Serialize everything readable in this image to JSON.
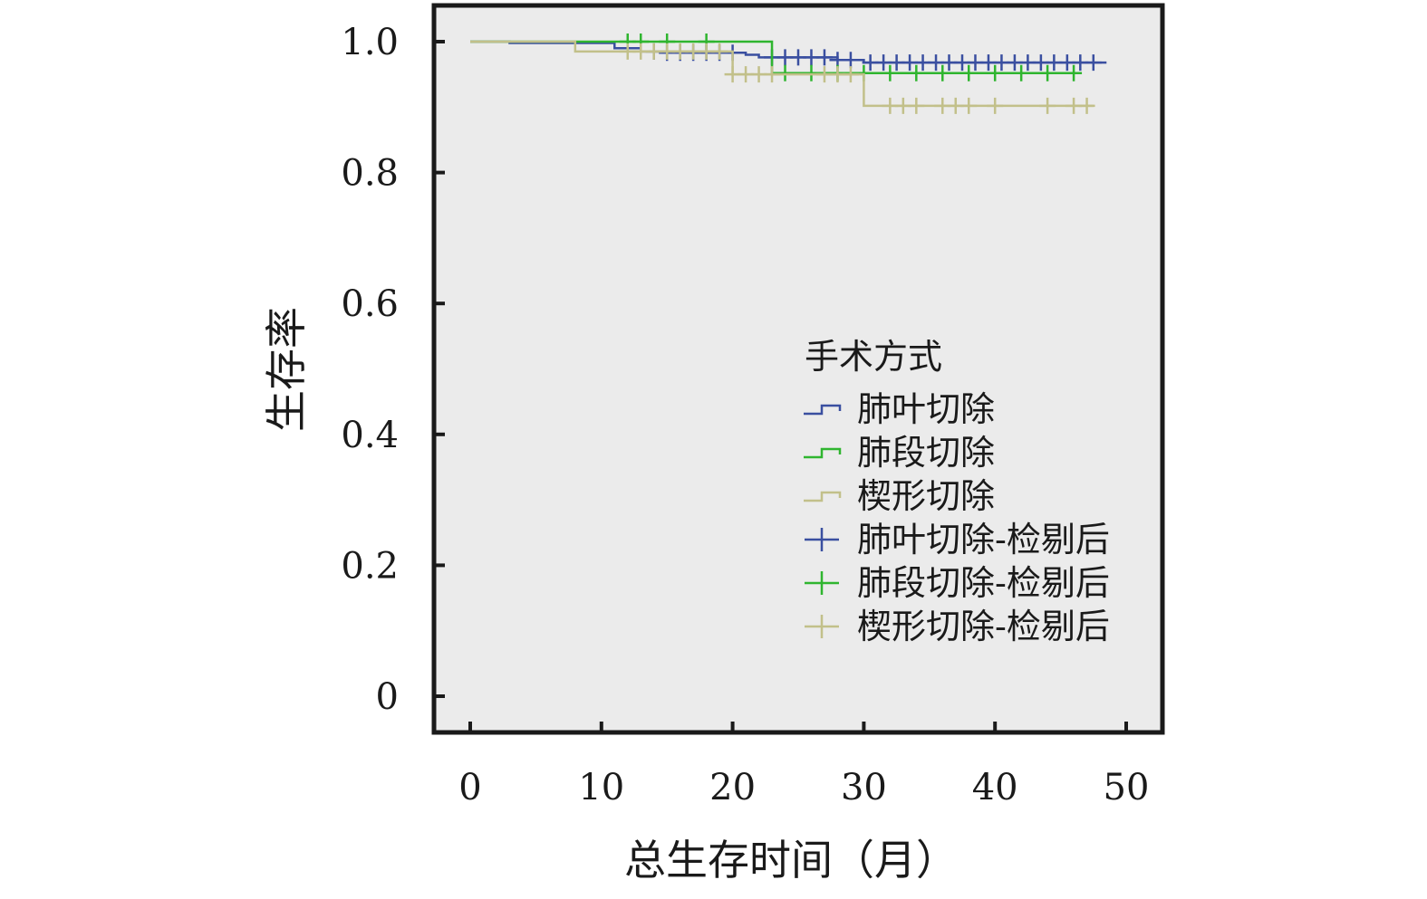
{
  "chart_data": {
    "type": "line",
    "subtype": "kaplan-meier",
    "xlabel": "总生存时间（月）",
    "ylabel": "生存率",
    "xlim": [
      0,
      50
    ],
    "ylim": [
      0,
      1.0
    ],
    "xticks": [
      0,
      10,
      20,
      30,
      40,
      50
    ],
    "xtick_labels": [
      "0",
      "10",
      "20",
      "30",
      "40",
      "50"
    ],
    "yticks": [
      0,
      0.2,
      0.4,
      0.6,
      0.8,
      1.0
    ],
    "ytick_labels": [
      "0",
      "0.2",
      "0.4",
      "0.6",
      "0.8",
      "1.0"
    ],
    "grid": false,
    "plot_background": "#ebebeb",
    "legend": {
      "title": "手术方式",
      "placement": "center-right",
      "entries": [
        {
          "label": "肺叶切除",
          "marker": "step",
          "color": "#3a4fa0"
        },
        {
          "label": "肺段切除",
          "marker": "step",
          "color": "#2fb52f"
        },
        {
          "label": "楔形切除",
          "marker": "step",
          "color": "#c2c08a"
        },
        {
          "label": "肺叶切除-检剔后",
          "marker": "cross",
          "color": "#3a4fa0"
        },
        {
          "label": "肺段切除-检剔后",
          "marker": "cross",
          "color": "#2fb52f"
        },
        {
          "label": "楔形切除-检剔后",
          "marker": "cross",
          "color": "#c2c08a"
        }
      ]
    },
    "series": [
      {
        "name": "肺叶切除",
        "color": "#3a4fa0",
        "steps": [
          [
            0,
            1.0
          ],
          [
            3,
            0.998
          ],
          [
            11,
            0.99
          ],
          [
            13,
            0.985
          ],
          [
            15,
            0.983
          ],
          [
            21,
            0.98
          ],
          [
            22,
            0.976
          ],
          [
            28,
            0.972
          ],
          [
            30,
            0.968
          ],
          [
            48.5,
            0.968
          ]
        ],
        "censored": [
          [
            14,
            0.985
          ],
          [
            15,
            0.983
          ],
          [
            16,
            0.983
          ],
          [
            17,
            0.983
          ],
          [
            18,
            0.983
          ],
          [
            19,
            0.983
          ],
          [
            20,
            0.983
          ],
          [
            23,
            0.976
          ],
          [
            24,
            0.976
          ],
          [
            25,
            0.976
          ],
          [
            26,
            0.976
          ],
          [
            27,
            0.976
          ],
          [
            28,
            0.972
          ],
          [
            29,
            0.972
          ],
          [
            30.5,
            0.968
          ],
          [
            31.5,
            0.968
          ],
          [
            32.5,
            0.968
          ],
          [
            33.5,
            0.968
          ],
          [
            34.5,
            0.968
          ],
          [
            35.5,
            0.968
          ],
          [
            36.5,
            0.968
          ],
          [
            37.5,
            0.968
          ],
          [
            38.5,
            0.968
          ],
          [
            39.5,
            0.968
          ],
          [
            40.5,
            0.968
          ],
          [
            41.5,
            0.968
          ],
          [
            42.5,
            0.968
          ],
          [
            43.5,
            0.968
          ],
          [
            44.5,
            0.968
          ],
          [
            45.5,
            0.968
          ],
          [
            46.5,
            0.968
          ],
          [
            47.5,
            0.968
          ]
        ]
      },
      {
        "name": "肺段切除",
        "color": "#2fb52f",
        "steps": [
          [
            0,
            1.0
          ],
          [
            23,
            0.952
          ],
          [
            46.5,
            0.952
          ]
        ],
        "censored": [
          [
            12,
            1.0
          ],
          [
            13,
            1.0
          ],
          [
            15,
            1.0
          ],
          [
            18,
            1.0
          ],
          [
            24,
            0.952
          ],
          [
            26,
            0.952
          ],
          [
            28,
            0.952
          ],
          [
            30,
            0.952
          ],
          [
            32,
            0.952
          ],
          [
            34,
            0.952
          ],
          [
            36,
            0.952
          ],
          [
            38,
            0.952
          ],
          [
            40,
            0.952
          ],
          [
            42,
            0.952
          ],
          [
            44,
            0.952
          ],
          [
            46,
            0.952
          ]
        ]
      },
      {
        "name": "楔形切除",
        "color": "#c2c08a",
        "steps": [
          [
            0,
            1.0
          ],
          [
            8,
            0.985
          ],
          [
            20,
            0.95
          ],
          [
            30,
            0.902
          ],
          [
            47.5,
            0.902
          ]
        ],
        "censored": [
          [
            12,
            0.985
          ],
          [
            13,
            0.985
          ],
          [
            14,
            0.985
          ],
          [
            15,
            0.985
          ],
          [
            16,
            0.985
          ],
          [
            17,
            0.985
          ],
          [
            18,
            0.985
          ],
          [
            19,
            0.985
          ],
          [
            20,
            0.95
          ],
          [
            21,
            0.95
          ],
          [
            22,
            0.95
          ],
          [
            23,
            0.95
          ],
          [
            27,
            0.95
          ],
          [
            28,
            0.95
          ],
          [
            29,
            0.95
          ],
          [
            32,
            0.902
          ],
          [
            33,
            0.902
          ],
          [
            34,
            0.902
          ],
          [
            36,
            0.902
          ],
          [
            37,
            0.902
          ],
          [
            38,
            0.902
          ],
          [
            40,
            0.902
          ],
          [
            44,
            0.902
          ],
          [
            46,
            0.902
          ],
          [
            47,
            0.902
          ]
        ]
      }
    ]
  }
}
